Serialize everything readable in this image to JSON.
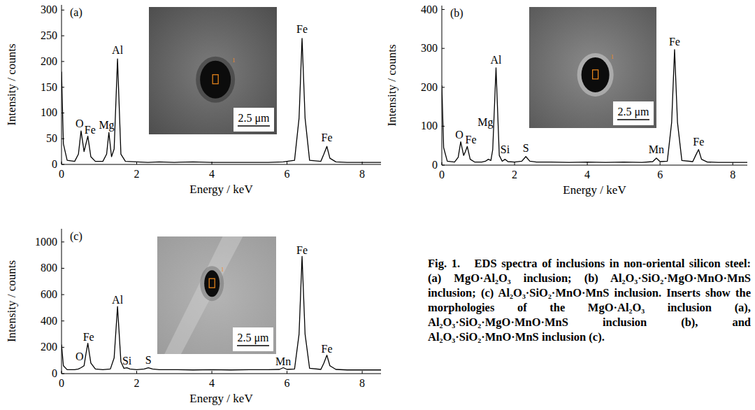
{
  "chart_data": [
    {
      "type": "line",
      "title": "(a)",
      "x_label": "Energy / keV",
      "y_label": "Intensity / counts",
      "xlim": [
        0,
        8.5
      ],
      "xticks": [
        0,
        2,
        4,
        6,
        8
      ],
      "ylim": [
        0,
        310
      ],
      "yticks": [
        0,
        50,
        100,
        150,
        200,
        250,
        300
      ],
      "color": "#000000",
      "x": [
        0,
        0.05,
        0.15,
        0.35,
        0.45,
        0.52,
        0.6,
        0.65,
        0.7,
        0.78,
        0.9,
        1.1,
        1.2,
        1.26,
        1.33,
        1.4,
        1.49,
        1.58,
        1.7,
        2.0,
        2.3,
        2.6,
        3.0,
        3.5,
        4.0,
        4.5,
        5.0,
        5.5,
        5.9,
        6.2,
        6.32,
        6.4,
        6.48,
        6.6,
        6.9,
        6.98,
        7.06,
        7.14,
        7.3,
        7.6,
        8.0,
        8.5
      ],
      "values": [
        180,
        40,
        8,
        6,
        20,
        65,
        25,
        40,
        55,
        15,
        6,
        6,
        20,
        62,
        15,
        30,
        205,
        20,
        6,
        5,
        4,
        5,
        4,
        5,
        4,
        4,
        4,
        4,
        5,
        8,
        90,
        245,
        90,
        8,
        6,
        20,
        35,
        12,
        5,
        4,
        4,
        4
      ],
      "annotations": [
        {
          "text": "O",
          "x": 0.48,
          "y": 72
        },
        {
          "text": "Fe",
          "x": 0.76,
          "y": 60
        },
        {
          "text": "Mg",
          "x": 1.2,
          "y": 70
        },
        {
          "text": "Al",
          "x": 1.49,
          "y": 215
        },
        {
          "text": "Fe",
          "x": 6.4,
          "y": 255
        },
        {
          "text": "Fe",
          "x": 7.06,
          "y": 45
        }
      ],
      "inset_scale_label": "2.5 μm",
      "inset_spot_label": "1"
    },
    {
      "type": "line",
      "title": "(b)",
      "x_label": "Energy / keV",
      "y_label": "Intensity / counts",
      "xlim": [
        0,
        8.4
      ],
      "xticks": [
        0,
        2,
        4,
        6,
        8
      ],
      "ylim": [
        0,
        410
      ],
      "yticks": [
        0,
        100,
        200,
        300,
        400
      ],
      "color": "#000000",
      "x": [
        0,
        0.05,
        0.15,
        0.35,
        0.45,
        0.52,
        0.6,
        0.65,
        0.7,
        0.78,
        0.9,
        1.1,
        1.2,
        1.28,
        1.35,
        1.4,
        1.49,
        1.58,
        1.66,
        1.74,
        1.82,
        2.0,
        2.2,
        2.31,
        2.42,
        2.6,
        3.0,
        3.5,
        4.0,
        4.5,
        5.0,
        5.5,
        5.8,
        5.9,
        6.0,
        6.2,
        6.32,
        6.4,
        6.48,
        6.6,
        6.9,
        6.98,
        7.06,
        7.14,
        7.3,
        7.6,
        8.0,
        8.4
      ],
      "values": [
        205,
        45,
        10,
        8,
        20,
        60,
        25,
        35,
        48,
        15,
        8,
        8,
        10,
        15,
        12,
        40,
        250,
        25,
        10,
        15,
        9,
        8,
        10,
        22,
        10,
        8,
        8,
        7,
        8,
        7,
        8,
        7,
        9,
        18,
        9,
        10,
        110,
        297,
        110,
        12,
        9,
        25,
        40,
        15,
        8,
        7,
        7,
        7
      ],
      "annotations": [
        {
          "text": "O",
          "x": 0.48,
          "y": 68
        },
        {
          "text": "Fe",
          "x": 0.8,
          "y": 55
        },
        {
          "text": "Mg",
          "x": 1.2,
          "y": 100
        },
        {
          "text": "Al",
          "x": 1.49,
          "y": 260
        },
        {
          "text": "Si",
          "x": 1.74,
          "y": 30
        },
        {
          "text": "S",
          "x": 2.31,
          "y": 35
        },
        {
          "text": "Mn",
          "x": 5.9,
          "y": 30
        },
        {
          "text": "Fe",
          "x": 6.4,
          "y": 307
        },
        {
          "text": "Fe",
          "x": 7.06,
          "y": 50
        }
      ],
      "inset_scale_label": "2.5 μm",
      "inset_spot_label": "1"
    },
    {
      "type": "line",
      "title": "(c)",
      "x_label": "Energy / keV",
      "y_label": "Intensity / counts",
      "xlim": [
        0,
        8.5
      ],
      "xticks": [
        0,
        2,
        4,
        6,
        8
      ],
      "ylim": [
        0,
        1100
      ],
      "yticks": [
        0,
        200,
        400,
        600,
        800,
        1000
      ],
      "color": "#000000",
      "x": [
        0,
        0.05,
        0.15,
        0.35,
        0.45,
        0.52,
        0.6,
        0.65,
        0.7,
        0.78,
        0.9,
        1.1,
        1.3,
        1.4,
        1.49,
        1.58,
        1.66,
        1.74,
        1.82,
        2.0,
        2.2,
        2.31,
        2.42,
        2.6,
        3.0,
        3.5,
        4.0,
        4.5,
        5.0,
        5.5,
        5.8,
        5.9,
        6.0,
        6.2,
        6.32,
        6.4,
        6.48,
        6.6,
        6.9,
        6.98,
        7.06,
        7.14,
        7.3,
        7.6,
        8.0,
        8.5
      ],
      "values": [
        220,
        60,
        30,
        30,
        35,
        45,
        60,
        150,
        230,
        80,
        35,
        30,
        35,
        120,
        510,
        90,
        40,
        45,
        35,
        30,
        35,
        45,
        35,
        30,
        30,
        28,
        30,
        28,
        30,
        30,
        32,
        45,
        32,
        35,
        300,
        890,
        300,
        40,
        32,
        80,
        140,
        60,
        32,
        28,
        28,
        28
      ],
      "annotations": [
        {
          "text": "O",
          "x": 0.48,
          "y": 100
        },
        {
          "text": "Fe",
          "x": 0.72,
          "y": 250
        },
        {
          "text": "Al",
          "x": 1.49,
          "y": 530
        },
        {
          "text": "Si",
          "x": 1.74,
          "y": 70
        },
        {
          "text": "S",
          "x": 2.31,
          "y": 75
        },
        {
          "text": "Mn",
          "x": 5.9,
          "y": 65
        },
        {
          "text": "Fe",
          "x": 6.4,
          "y": 910
        },
        {
          "text": "Fe",
          "x": 7.06,
          "y": 160
        }
      ],
      "inset_scale_label": "2.5 μm",
      "inset_spot_label": "1"
    }
  ],
  "caption": {
    "label": "Fig. 1.",
    "text": "EDS spectra of inclusions in non-oriental silicon steel: (a) MgO·Al₂O₃ inclusion; (b) Al₂O₃·SiO₂·MgO·MnO·MnS inclusion; (c) Al₂O₃·SiO₂·MnO·MnS inclusion. Inserts show the morphologies of the MgO·Al₂O₃ inclusion (a), Al₂O₃·SiO₂·MgO·MnO·MnS inclusion (b), and Al₂O₃·SiO₂·MnO·MnS inclusion (c)."
  }
}
